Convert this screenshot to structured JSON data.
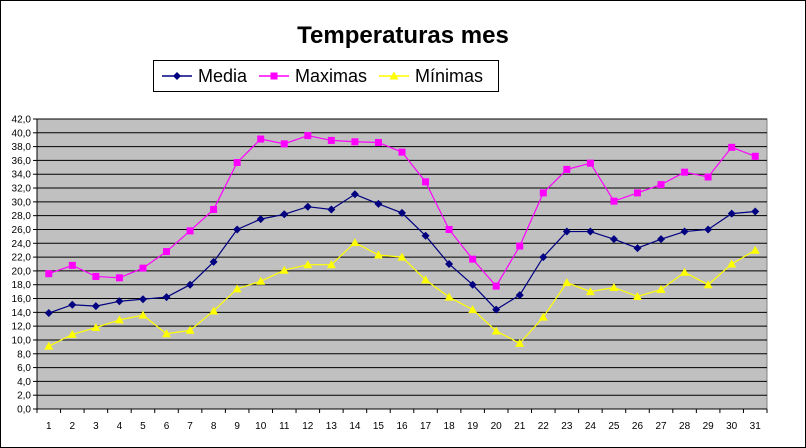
{
  "chart_data": {
    "type": "line",
    "title": "Temperaturas mes",
    "categories": [
      "1",
      "2",
      "3",
      "4",
      "5",
      "6",
      "7",
      "8",
      "9",
      "10",
      "11",
      "12",
      "13",
      "14",
      "15",
      "16",
      "17",
      "18",
      "19",
      "20",
      "21",
      "22",
      "23",
      "24",
      "25",
      "26",
      "27",
      "28",
      "29",
      "30",
      "31"
    ],
    "ylim": [
      0,
      42
    ],
    "ytick_step": 2,
    "ytick_labels": [
      "0,0",
      "2,0",
      "4,0",
      "6,0",
      "8,0",
      "10,0",
      "12,0",
      "14,0",
      "16,0",
      "18,0",
      "20,0",
      "22,0",
      "24,0",
      "26,0",
      "28,0",
      "30,0",
      "32,0",
      "34,0",
      "36,0",
      "38,0",
      "40,0",
      "42,0"
    ],
    "grid": true,
    "legend_position": "top-left",
    "plot_background": "#c0c0c0",
    "series": [
      {
        "name": "Media",
        "color": "#000080",
        "marker": "diamond",
        "values": [
          13.9,
          15.1,
          14.9,
          15.6,
          15.9,
          16.2,
          18.0,
          21.3,
          26.0,
          27.5,
          28.2,
          29.3,
          28.9,
          31.1,
          29.7,
          28.4,
          25.1,
          21.0,
          18.0,
          14.4,
          16.5,
          22.0,
          25.7,
          25.7,
          24.6,
          23.3,
          24.6,
          25.7,
          26.0,
          28.3,
          28.6
        ]
      },
      {
        "name": "Maximas",
        "color": "#ff00ff",
        "marker": "square",
        "values": [
          19.6,
          20.8,
          19.2,
          19.0,
          20.4,
          22.8,
          25.8,
          28.9,
          35.7,
          39.1,
          38.4,
          39.6,
          38.9,
          38.7,
          38.6,
          37.2,
          32.9,
          26.0,
          21.7,
          17.8,
          23.6,
          31.3,
          34.7,
          35.6,
          30.1,
          31.3,
          32.5,
          34.3,
          33.6,
          37.9,
          36.6
        ]
      },
      {
        "name": "Mínimas",
        "color": "#ffff00",
        "marker": "triangle",
        "values": [
          9.1,
          10.8,
          11.8,
          12.9,
          13.6,
          10.9,
          11.4,
          14.2,
          17.4,
          18.5,
          20.1,
          20.9,
          20.9,
          24.1,
          22.3,
          22.0,
          18.7,
          16.2,
          14.4,
          11.3,
          9.5,
          13.3,
          18.3,
          17.0,
          17.6,
          16.3,
          17.3,
          19.8,
          18.0,
          21.0,
          23.0
        ]
      }
    ]
  }
}
